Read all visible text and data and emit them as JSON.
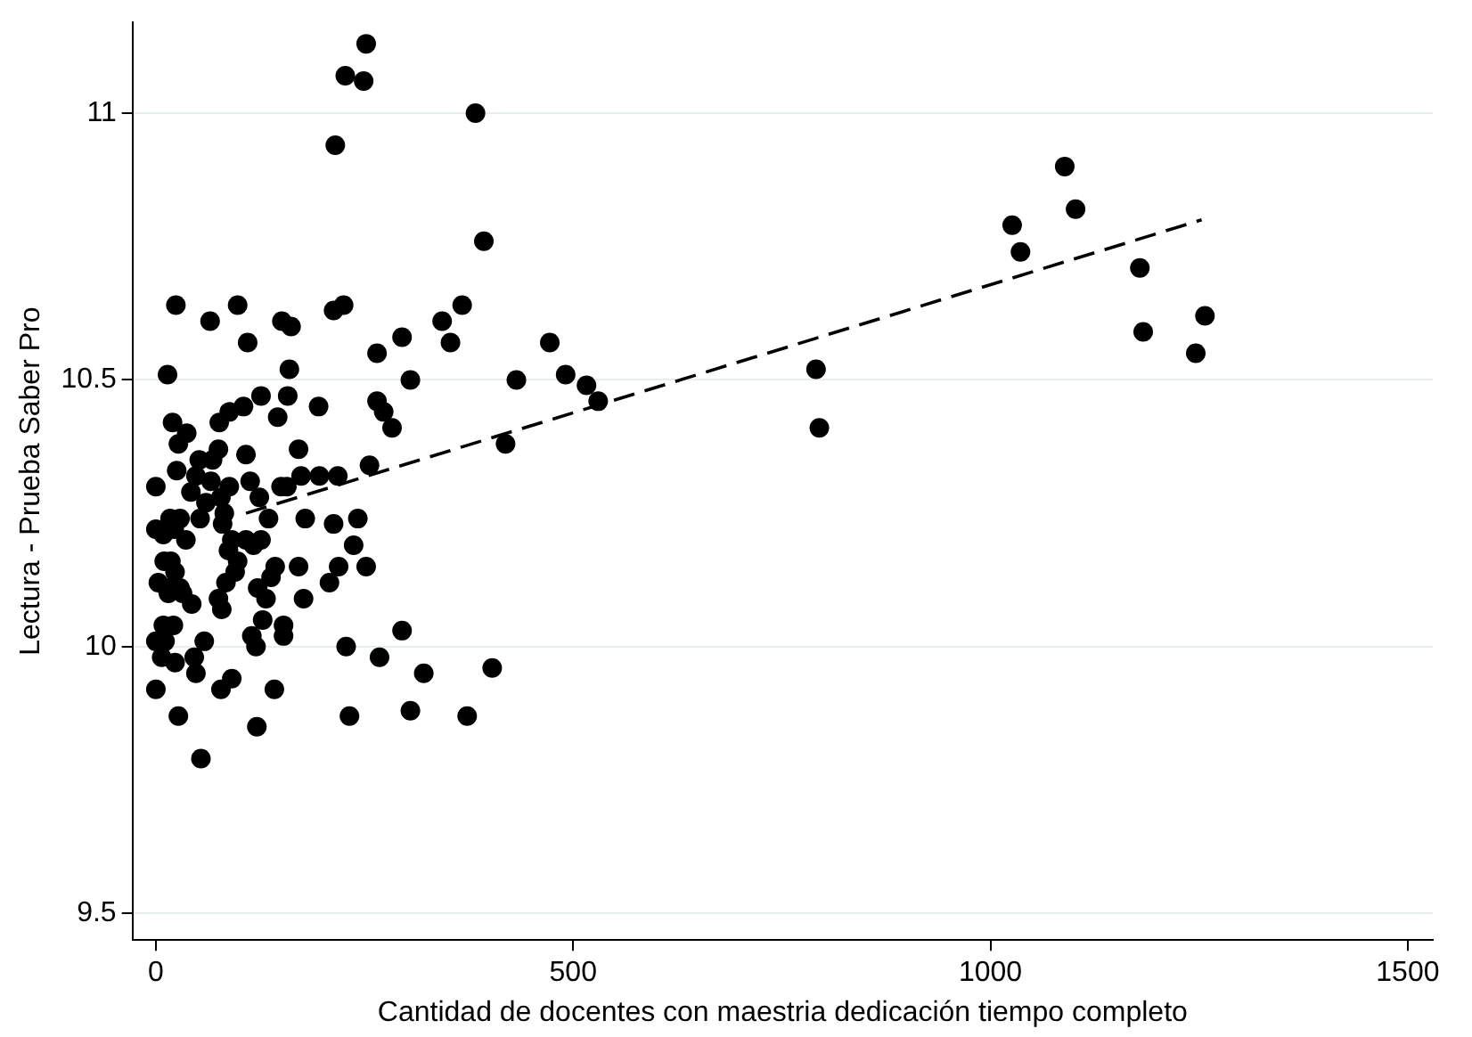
{
  "chart_data": {
    "type": "scatter",
    "xlabel": "Cantidad de docentes con maestria dedicación tiempo completo",
    "ylabel": "Lectura - Prueba Saber Pro",
    "xlim": [
      -28,
      1530
    ],
    "ylim": [
      9.45,
      11.17
    ],
    "xticks": [
      0,
      500,
      1000,
      1500
    ],
    "yticks": [
      9.5,
      10,
      10.5,
      11
    ],
    "grid": "y",
    "legend": false,
    "marker": "circle",
    "series": [
      {
        "color": "#000000",
        "x": [
          252,
          227,
          249,
          383,
          215,
          1089,
          1102,
          1026,
          1036,
          393,
          1179,
          1183,
          1257,
          1246,
          791,
          795,
          24,
          98,
          65,
          110,
          213,
          225,
          151,
          162,
          343,
          367,
          353,
          295,
          265,
          305,
          472,
          491,
          516,
          530,
          432,
          419,
          14,
          160,
          158,
          126,
          146,
          195,
          105,
          88,
          76,
          20,
          37,
          27,
          75,
          108,
          171,
          265,
          273,
          283,
          256,
          25,
          52,
          68,
          196,
          218,
          174,
          113,
          48,
          0,
          88,
          66,
          150,
          157,
          42,
          60,
          78,
          124,
          82,
          53,
          80,
          179,
          242,
          135,
          0,
          17,
          29,
          9,
          36,
          22,
          91,
          108,
          126,
          87,
          117,
          237,
          213,
          10,
          18,
          98,
          143,
          171,
          219,
          252,
          23,
          95,
          3,
          13,
          29,
          138,
          84,
          208,
          122,
          15,
          32,
          132,
          177,
          43,
          75,
          79,
          128,
          153,
          9,
          21,
          115,
          153,
          295,
          0,
          11,
          58,
          228,
          120,
          7,
          46,
          23,
          48,
          91,
          268,
          321,
          403,
          0,
          78,
          142,
          27,
          232,
          305,
          373,
          121,
          54
        ],
        "values": [
          11.13,
          11.07,
          11.06,
          11.0,
          10.94,
          10.9,
          10.82,
          10.79,
          10.74,
          10.76,
          10.71,
          10.59,
          10.62,
          10.55,
          10.52,
          10.41,
          10.64,
          10.64,
          10.61,
          10.57,
          10.63,
          10.64,
          10.61,
          10.6,
          10.61,
          10.64,
          10.57,
          10.58,
          10.55,
          10.5,
          10.57,
          10.51,
          10.49,
          10.46,
          10.5,
          10.38,
          10.51,
          10.52,
          10.47,
          10.47,
          10.43,
          10.45,
          10.45,
          10.44,
          10.42,
          10.42,
          10.4,
          10.38,
          10.37,
          10.36,
          10.37,
          10.46,
          10.44,
          10.41,
          10.34,
          10.33,
          10.35,
          10.35,
          10.32,
          10.32,
          10.32,
          10.31,
          10.32,
          10.3,
          10.3,
          10.31,
          10.3,
          10.3,
          10.29,
          10.27,
          10.28,
          10.28,
          10.25,
          10.24,
          10.23,
          10.24,
          10.24,
          10.24,
          10.22,
          10.24,
          10.24,
          10.21,
          10.2,
          10.22,
          10.2,
          10.2,
          10.2,
          10.18,
          10.19,
          10.19,
          10.23,
          10.16,
          10.16,
          10.16,
          10.15,
          10.15,
          10.15,
          10.15,
          10.14,
          10.14,
          10.12,
          10.11,
          10.11,
          10.13,
          10.12,
          10.12,
          10.11,
          10.1,
          10.1,
          10.09,
          10.09,
          10.08,
          10.09,
          10.07,
          10.05,
          10.04,
          10.04,
          10.04,
          10.02,
          10.02,
          10.03,
          10.01,
          10.01,
          10.01,
          10.0,
          10.0,
          9.98,
          9.98,
          9.97,
          9.95,
          9.94,
          9.98,
          9.95,
          9.96,
          9.92,
          9.92,
          9.92,
          9.87,
          9.87,
          9.88,
          9.87,
          9.85,
          9.79
        ]
      },
      {
        "type": "line",
        "color": "#000000",
        "line_style": "dashed",
        "marker": "none",
        "x": [
          108,
          1253
        ],
        "values": [
          10.25,
          10.8
        ]
      }
    ]
  }
}
